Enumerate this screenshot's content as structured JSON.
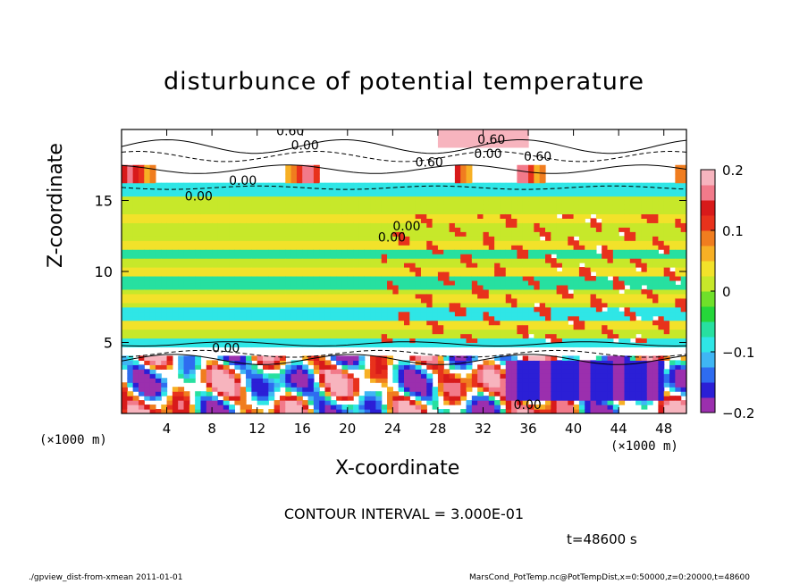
{
  "chart_data": {
    "type": "heatmap",
    "title": "disturbunce of potential temperature",
    "xlabel": "X-coordinate",
    "ylabel": "Z-coordinate",
    "x_unit": "(×1000 m)",
    "xlim": [
      0,
      50
    ],
    "ylim": [
      0,
      20
    ],
    "x_ticks": [
      4,
      8,
      12,
      16,
      20,
      24,
      28,
      32,
      36,
      40,
      44,
      48
    ],
    "y_ticks": [
      5,
      10,
      15
    ],
    "colorbar": {
      "range": [
        -0.2,
        0.2
      ],
      "tick_labels": [
        "0.2",
        "0.1",
        "0",
        "−0.1",
        "−0.2"
      ],
      "colors": [
        "#9b2fae",
        "#2b1fd6",
        "#2e6cf0",
        "#3fb6f4",
        "#2fe6e6",
        "#27e0a0",
        "#25d63a",
        "#6fe02a",
        "#c7e82a",
        "#f2e22a",
        "#f7b025",
        "#f07d1f",
        "#e8321c",
        "#d81a1a",
        "#f27a8a",
        "#f7b4be"
      ]
    },
    "contour_labels": [
      "0.60",
      "0.00",
      "0.60",
      "0.00",
      "0.60",
      "0.60",
      "0.00",
      "0.00",
      "0.00",
      "0.00",
      "0.00",
      "0.00"
    ],
    "contour_interval_text": "CONTOUR INTERVAL = 3.000E-01",
    "time_text": "t=48600 s"
  },
  "footer": {
    "left": "./gpview_dist-from-xmean  2011-01-01",
    "right": "MarsCond_PotTemp.nc@PotTempDist,x=0:50000,z=0:20000,t=48600"
  }
}
